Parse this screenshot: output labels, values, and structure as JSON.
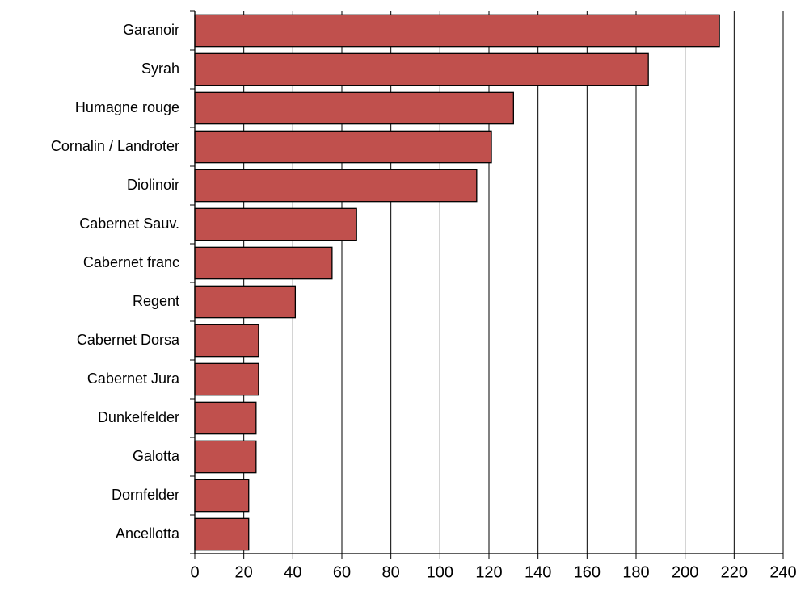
{
  "chart_data": {
    "type": "bar",
    "orientation": "horizontal",
    "categories": [
      "Garanoir",
      "Syrah",
      "Humagne rouge",
      "Cornalin / Landroter",
      "Diolinoir",
      "Cabernet Sauv.",
      "Cabernet franc",
      "Regent",
      "Cabernet Dorsa",
      "Cabernet Jura",
      "Dunkelfelder",
      "Galotta",
      "Dornfelder",
      "Ancellotta"
    ],
    "values": [
      214,
      185,
      130,
      121,
      115,
      66,
      56,
      41,
      26,
      26,
      25,
      25,
      22,
      22
    ],
    "color": "#c0504d",
    "xlim": [
      0,
      240
    ],
    "xticks": [
      0,
      20,
      40,
      60,
      80,
      100,
      120,
      140,
      160,
      180,
      200,
      220,
      240
    ],
    "grid": true
  }
}
